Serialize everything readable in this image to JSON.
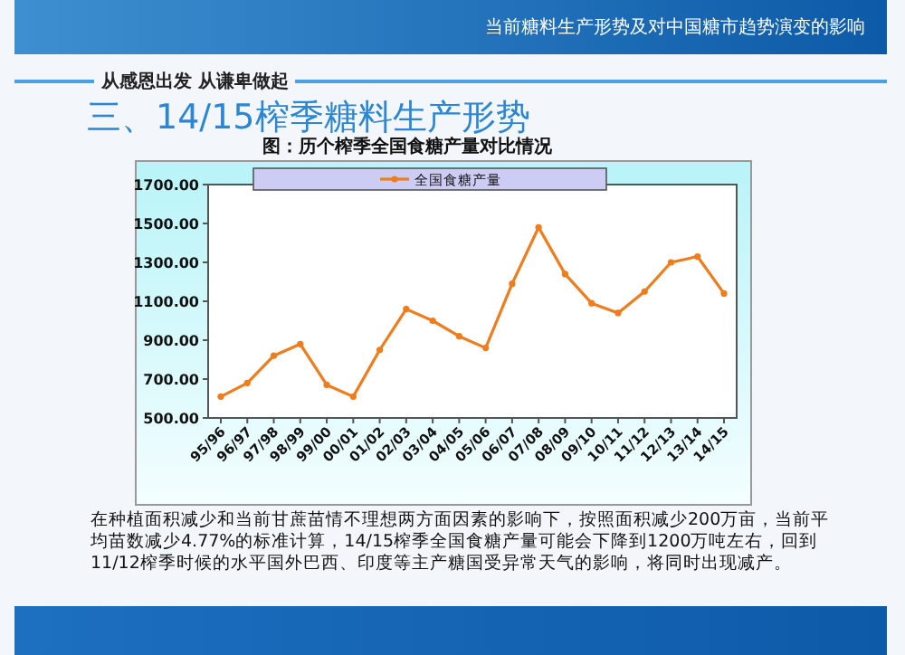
{
  "chart_data": {
    "type": "line",
    "title": "三、14/15榨季糖料生产形势",
    "subtitle": "图：历个榨季全国食糖产量对比情况",
    "annotations": [
      "当前糖料生产形势及对中国糖市趋势演变的影响",
      "从感恩出发  从谦卑做起",
      "在种植面积减少和当前甘蔗苗情不理想两方面因素的影响下，按照面积减少200万亩，当前平均苗数减少4.77%的标准计算，14/15榨季全国食糖产量可能会下降到1200万吨左右，回到11/12榨季时候的水平国外巴西、印度等主产糖国受异常天气的影响，将同时出现减产。"
    ],
    "categories": [
      "95/96",
      "96/97",
      "97/98",
      "98/99",
      "99/00",
      "00/01",
      "01/02",
      "02/03",
      "03/04",
      "04/05",
      "05/06",
      "06/07",
      "07/08",
      "08/09",
      "09/10",
      "10/11",
      "11/12",
      "12/13",
      "13/14",
      "14/15"
    ],
    "series": [
      {
        "name": "全国食糖产量",
        "color": "#f07c1c",
        "values": [
          610,
          680,
          820,
          880,
          670,
          610,
          850,
          1060,
          1000,
          920,
          860,
          1190,
          1480,
          1240,
          1090,
          1040,
          1150,
          1300,
          1330,
          1140
        ]
      }
    ],
    "ylim": [
      500,
      1700
    ],
    "yticks": [
      {
        "value": 500,
        "label": "500.00"
      },
      {
        "value": 700,
        "label": "700.00"
      },
      {
        "value": 900,
        "label": "900.00"
      },
      {
        "value": 1100,
        "label": "1100.00"
      },
      {
        "value": 1300,
        "label": "1300.00"
      },
      {
        "value": 1500,
        "label": "1500.00"
      },
      {
        "value": 1700,
        "label": "1700.00"
      }
    ],
    "legend": "top",
    "marker": "circle",
    "line_style": "solid"
  }
}
